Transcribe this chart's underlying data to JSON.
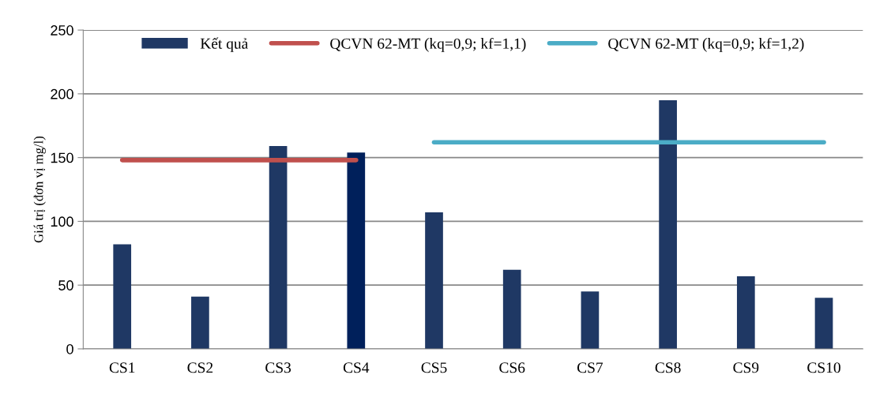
{
  "chart_data": {
    "type": "bar",
    "ylabel": "Giá trị (đơn vị mg/l)",
    "categories": [
      "CS1",
      "CS2",
      "CS3",
      "CS4",
      "CS5",
      "CS6",
      "CS7",
      "CS8",
      "CS9",
      "CS10"
    ],
    "series": [
      {
        "name": "Kết quả",
        "colors": [
          "#1f3864",
          "#1f3864",
          "#1f3864",
          "#00205b",
          "#1f3864",
          "#1f3864",
          "#1f3864",
          "#1f3864",
          "#1f3864",
          "#1f3864"
        ],
        "values": [
          82,
          41,
          159,
          154,
          107,
          62,
          45,
          195,
          57,
          40
        ]
      },
      {
        "name": "QCVN 62-MT (kq=0,9; kf=1,1)",
        "type": "line",
        "color": "#c0504d",
        "values": [
          148,
          148,
          148,
          148,
          null,
          null,
          null,
          null,
          null,
          null
        ]
      },
      {
        "name": "QCVN 62-MT (kq=0,9; kf=1,2)",
        "type": "line",
        "color": "#4bacc6",
        "values": [
          null,
          null,
          null,
          null,
          162,
          162,
          162,
          162,
          162,
          162
        ]
      }
    ],
    "ylim": [
      0,
      250
    ],
    "yticks": [
      0,
      50,
      100,
      150,
      200,
      250
    ],
    "grid": "y",
    "legend": "top"
  }
}
